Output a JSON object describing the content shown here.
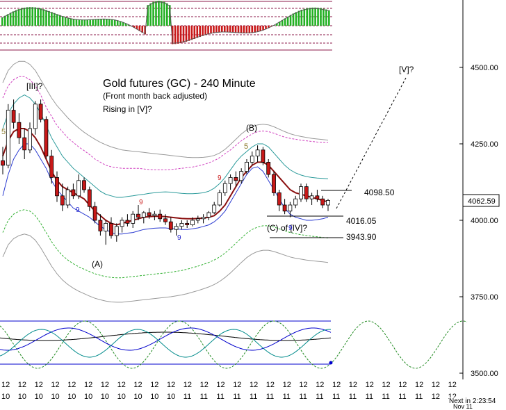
{
  "chart_data": {
    "type": "candlestick",
    "title": "Gold futures (GC) - 240 Minute",
    "subtitle": "(Front month back adjusted)",
    "note": "Rising in [V]?",
    "y_axis": {
      "ticks": [
        3500,
        3750,
        4000,
        4250,
        4500
      ],
      "tick_labels": [
        "3500.00",
        "3750.00",
        "4000.00",
        "4250.00",
        "4500.00"
      ],
      "ylim": [
        3500,
        4500
      ]
    },
    "last_price": {
      "label": "4062.59",
      "value": 4062.59
    },
    "levels": [
      {
        "label": "4098.50",
        "value": 4098.5
      },
      {
        "label": "4016.05",
        "value": 4016.05
      },
      {
        "label": "3943.90",
        "value": 3943.9
      }
    ],
    "wave_labels": [
      "[III]?",
      "(A)",
      "(B)",
      "(C) of [IV]?",
      "[V]?",
      "5",
      "9"
    ],
    "x_tick_labels": [
      "12",
      "10",
      "12",
      "10",
      "12",
      "10",
      "12",
      "10",
      "12",
      "10",
      "12",
      "10",
      "12",
      "10",
      "12",
      "10",
      "12",
      "10",
      "12",
      "10",
      "12",
      "10",
      "12",
      "11",
      "12",
      "11",
      "12",
      "11",
      "12",
      "11",
      "12",
      "11",
      "12",
      "11",
      "12",
      "11",
      "12",
      "11",
      "12",
      "11",
      "12",
      "11",
      "12",
      "11",
      "12",
      "11",
      "12",
      "11",
      "12",
      "11",
      "12",
      "11",
      "12",
      "12",
      "12",
      "12",
      "12",
      "12"
    ],
    "footer_text": "Next in 2:23:54",
    "footer_text2": "Nov 11",
    "candles": [
      [
        4195,
        4240,
        4150,
        4180
      ],
      [
        4180,
        4380,
        4170,
        4360
      ],
      [
        4360,
        4395,
        4300,
        4320
      ],
      [
        4320,
        4350,
        4250,
        4270
      ],
      [
        4270,
        4300,
        4200,
        4230
      ],
      [
        4230,
        4320,
        4220,
        4300
      ],
      [
        4300,
        4390,
        4280,
        4380
      ],
      [
        4380,
        4395,
        4320,
        4330
      ],
      [
        4330,
        4340,
        4200,
        4210
      ],
      [
        4210,
        4230,
        4120,
        4140
      ],
      [
        4140,
        4160,
        4060,
        4080
      ],
      [
        4080,
        4120,
        4030,
        4050
      ],
      [
        4050,
        4110,
        4040,
        4100
      ],
      [
        4100,
        4120,
        4070,
        4080
      ],
      [
        4080,
        4150,
        4070,
        4130
      ],
      [
        4130,
        4140,
        4090,
        4100
      ],
      [
        4100,
        4110,
        4030,
        4045
      ],
      [
        4045,
        4060,
        3990,
        4000
      ],
      [
        4000,
        4020,
        3950,
        3965
      ],
      [
        3965,
        4000,
        3920,
        3990
      ],
      [
        3990,
        4010,
        3940,
        3950
      ],
      [
        3950,
        3990,
        3930,
        3980
      ],
      [
        3980,
        4010,
        3960,
        4000
      ],
      [
        4000,
        4020,
        3980,
        3990
      ],
      [
        3990,
        4030,
        3975,
        4020
      ],
      [
        4020,
        4050,
        4000,
        4010
      ],
      [
        4010,
        4030,
        3990,
        4025
      ],
      [
        4025,
        4040,
        4005,
        4015
      ],
      [
        4015,
        4030,
        4000,
        4020
      ],
      [
        4020,
        4035,
        3995,
        4005
      ],
      [
        4005,
        4020,
        3985,
        3995
      ],
      [
        3995,
        4010,
        3960,
        3970
      ],
      [
        3970,
        3990,
        3950,
        3980
      ],
      [
        3980,
        4000,
        3970,
        3990
      ],
      [
        3990,
        4000,
        3975,
        3985
      ],
      [
        3985,
        4010,
        3980,
        4000
      ],
      [
        4000,
        4015,
        3990,
        4005
      ],
      [
        4005,
        4020,
        3990,
        4010
      ],
      [
        4010,
        4030,
        4000,
        4025
      ],
      [
        4025,
        4060,
        4020,
        4050
      ],
      [
        4050,
        4100,
        4045,
        4090
      ],
      [
        4090,
        4130,
        4080,
        4120
      ],
      [
        4120,
        4150,
        4100,
        4140
      ],
      [
        4140,
        4160,
        4110,
        4130
      ],
      [
        4130,
        4170,
        4120,
        4160
      ],
      [
        4160,
        4200,
        4150,
        4190
      ],
      [
        4190,
        4225,
        4180,
        4210
      ],
      [
        4210,
        4245,
        4190,
        4230
      ],
      [
        4230,
        4240,
        4180,
        4190
      ],
      [
        4190,
        4200,
        4140,
        4150
      ],
      [
        4150,
        4160,
        4080,
        4090
      ],
      [
        4090,
        4100,
        4030,
        4050
      ],
      [
        4050,
        4070,
        4020,
        4030
      ],
      [
        4030,
        4060,
        4010,
        4050
      ],
      [
        4050,
        4080,
        4040,
        4070
      ],
      [
        4070,
        4120,
        4060,
        4110
      ],
      [
        4110,
        4120,
        4060,
        4070
      ],
      [
        4070,
        4090,
        4050,
        4080
      ],
      [
        4080,
        4100,
        4060,
        4070
      ],
      [
        4070,
        4080,
        4040,
        4050
      ],
      [
        4050,
        4070,
        4030,
        4065
      ]
    ],
    "bands": {
      "centre_red": [
        4210,
        4260,
        4290,
        4300,
        4300,
        4290,
        4270,
        4240,
        4200,
        4160,
        4130,
        4110,
        4100,
        4090,
        4080,
        4070,
        4050,
        4030,
        4015,
        4000,
        3990,
        3985,
        3990,
        3995,
        4000,
        4005,
        4010,
        4012,
        4013,
        4013,
        4012,
        4010,
        4008,
        4006,
        4005,
        4005,
        4006,
        4007,
        4010,
        4015,
        4030,
        4050,
        4080,
        4110,
        4140,
        4160,
        4180,
        4190,
        4190,
        4180,
        4160,
        4140,
        4120,
        4100,
        4090,
        4085,
        4080,
        4075,
        4070,
        4065,
        4060
      ],
      "blue_mid": [
        4080,
        4150,
        4200,
        4230,
        4250,
        4250,
        4230,
        4200,
        4170,
        4130,
        4100,
        4080,
        4060,
        4040,
        4030,
        4020,
        4010,
        3995,
        3980,
        3970,
        3960,
        3955,
        3955,
        3958,
        3960,
        3965,
        3970,
        3972,
        3974,
        3975,
        3975,
        3973,
        3972,
        3970,
        3970,
        3972,
        3975,
        3980,
        3985,
        3995,
        4010,
        4030,
        4060,
        4090,
        4120,
        4150,
        4170,
        4175,
        4160,
        4130,
        4100,
        4070,
        4040,
        4020,
        4010,
        4005,
        4000,
        4000,
        4002,
        4005,
        4010
      ],
      "teal_upper": [
        4300,
        4350,
        4380,
        4400,
        4410,
        4400,
        4380,
        4350,
        4310,
        4270,
        4240,
        4210,
        4190,
        4170,
        4155,
        4140,
        4125,
        4110,
        4095,
        4085,
        4080,
        4075,
        4075,
        4078,
        4080,
        4083,
        4085,
        4088,
        4090,
        4092,
        4093,
        4092,
        4090,
        4088,
        4087,
        4087,
        4088,
        4090,
        4095,
        4105,
        4120,
        4140,
        4165,
        4190,
        4210,
        4225,
        4240,
        4250,
        4250,
        4240,
        4220,
        4200,
        4180,
        4165,
        4155,
        4148,
        4143,
        4140,
        4138,
        4137,
        4136
      ],
      "magenta_upper": [
        4400,
        4440,
        4460,
        4470,
        4470,
        4460,
        4440,
        4410,
        4370,
        4340,
        4310,
        4290,
        4270,
        4255,
        4240,
        4228,
        4215,
        4200,
        4190,
        4180,
        4175,
        4172,
        4170,
        4170,
        4170,
        4170,
        4168,
        4166,
        4165,
        4165,
        4165,
        4166,
        4168,
        4170,
        4172,
        4174,
        4178,
        4182,
        4188,
        4195,
        4205,
        4218,
        4230,
        4245,
        4260,
        4272,
        4282,
        4290,
        4292,
        4290,
        4285,
        4278,
        4272,
        4268,
        4265,
        4262,
        4260,
        4258,
        4256,
        4255,
        4254
      ],
      "gray_upper": [
        4450,
        4490,
        4510,
        4520,
        4520,
        4510,
        4490,
        4460,
        4430,
        4400,
        4375,
        4355,
        4335,
        4318,
        4302,
        4288,
        4276,
        4265,
        4255,
        4247,
        4240,
        4235,
        4230,
        4228,
        4226,
        4224,
        4222,
        4220,
        4218,
        4216,
        4214,
        4212,
        4210,
        4208,
        4206,
        4205,
        4205,
        4206,
        4208,
        4212,
        4220,
        4232,
        4248,
        4265,
        4282,
        4296,
        4306,
        4312,
        4314,
        4312,
        4306,
        4298,
        4290,
        4283,
        4278,
        4274,
        4271,
        4268,
        4266,
        4264,
        4262
      ],
      "green_lower": [
        3960,
        4000,
        4020,
        4030,
        4035,
        4030,
        4015,
        3990,
        3960,
        3930,
        3905,
        3885,
        3870,
        3858,
        3848,
        3840,
        3832,
        3825,
        3820,
        3816,
        3813,
        3812,
        3812,
        3814,
        3816,
        3818,
        3820,
        3822,
        3824,
        3826,
        3828,
        3830,
        3833,
        3836,
        3840,
        3845,
        3850,
        3856,
        3862,
        3870,
        3880,
        3893,
        3908,
        3925,
        3942,
        3958,
        3970,
        3978,
        3982,
        3982,
        3978,
        3972,
        3966,
        3960,
        3956,
        3953,
        3950,
        3948,
        3946,
        3944,
        3942
      ],
      "gray_lower": [
        3880,
        3920,
        3940,
        3950,
        3955,
        3950,
        3935,
        3910,
        3880,
        3850,
        3825,
        3805,
        3790,
        3778,
        3768,
        3760,
        3752,
        3745,
        3740,
        3736,
        3733,
        3732,
        3732,
        3734,
        3736,
        3738,
        3740,
        3742,
        3744,
        3746,
        3748,
        3750,
        3753,
        3756,
        3760,
        3765,
        3770,
        3776,
        3782,
        3790,
        3800,
        3813,
        3828,
        3845,
        3862,
        3878,
        3890,
        3898,
        3902,
        3902,
        3898,
        3892,
        3886,
        3880,
        3876,
        3873,
        3870,
        3868,
        3866,
        3864,
        3862
      ]
    },
    "projection": [
      [
        4062,
        4080
      ],
      [
        4500,
        4480
      ]
    ]
  }
}
